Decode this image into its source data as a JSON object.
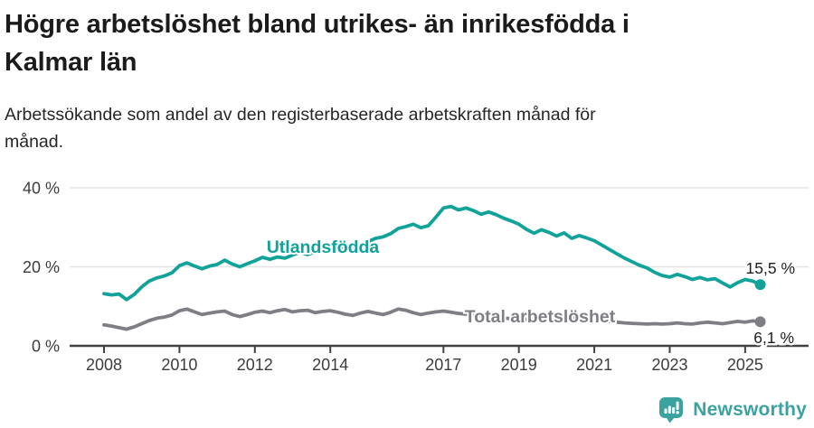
{
  "header": {
    "title_line1": "Högre arbetslöshet bland utrikes- än inrikesfödda i",
    "title_line2": "Kalmar län",
    "subtitle_line1": "Arbetssökande som andel av den registerbaserade arbetskraften månad för",
    "subtitle_line2": "månad."
  },
  "footer": {
    "brand": "Newsworthy",
    "logo_icon": "bar-chart-speech-bubble-icon"
  },
  "colors": {
    "teal": "#11a29a",
    "gray": "#7e7e84",
    "grid": "#e4e4e4",
    "axis": "#414141",
    "tick_text": "#3c3c3c",
    "value_text": "#1f1f1f",
    "logo_teal": "#3ba39f"
  },
  "chart_data": {
    "type": "line",
    "title": "Högre arbetslöshet bland utrikes- än inrikesfödda i Kalmar län",
    "subtitle": "Arbetssökande som andel av den registerbaserade arbetskraften månad för månad.",
    "xlabel": "",
    "ylabel": "",
    "ylim": [
      0,
      40
    ],
    "grid": "horizontal",
    "legend_position": "inline-labels",
    "x_start": 2008.0,
    "x_step": 0.2,
    "x_end": 2025.4,
    "y_axis": {
      "ticks": [
        0,
        20,
        40
      ],
      "tick_labels": [
        "0 %",
        "20 %",
        "40 %"
      ]
    },
    "x_axis": {
      "tick_years": [
        2008,
        2010,
        2012,
        2014,
        2017,
        2019,
        2021,
        2023,
        2025
      ],
      "tick_labels": [
        "2008",
        "2010",
        "2012",
        "2014",
        "2017",
        "2019",
        "2021",
        "2023",
        "2025"
      ]
    },
    "series": [
      {
        "name": "Utlandsfödda",
        "color_key": "teal",
        "end_label": "15,5 %",
        "end_value": 15.5,
        "values": [
          13.2,
          12.9,
          13.1,
          11.7,
          13.0,
          14.9,
          16.4,
          17.2,
          17.7,
          18.5,
          20.3,
          21.0,
          20.2,
          19.5,
          20.2,
          20.6,
          21.7,
          20.7,
          20.0,
          20.8,
          21.5,
          22.4,
          21.9,
          22.5,
          22.2,
          23.0,
          23.7,
          23.1,
          23.8,
          24.3,
          24.0,
          24.7,
          25.2,
          24.9,
          25.6,
          26.4,
          27.2,
          27.6,
          28.4,
          29.7,
          30.2,
          30.8,
          29.9,
          30.4,
          32.6,
          34.9,
          35.3,
          34.4,
          34.9,
          34.2,
          33.3,
          33.9,
          33.2,
          32.3,
          31.6,
          30.8,
          29.5,
          28.5,
          29.4,
          28.7,
          27.8,
          28.6,
          27.2,
          27.9,
          27.3,
          26.6,
          25.5,
          24.4,
          23.3,
          22.2,
          21.3,
          20.4,
          19.7,
          18.6,
          17.8,
          17.4,
          18.1,
          17.5,
          16.8,
          17.3,
          16.7,
          17.0,
          15.9,
          14.9,
          16.0,
          16.8,
          16.4,
          15.5
        ]
      },
      {
        "name": "Total arbetslöshet",
        "color_key": "gray",
        "end_label": "6,1 %",
        "end_value": 6.1,
        "values": [
          5.3,
          5.0,
          4.6,
          4.2,
          4.8,
          5.6,
          6.4,
          7.0,
          7.3,
          7.8,
          8.9,
          9.3,
          8.6,
          7.9,
          8.3,
          8.6,
          8.8,
          7.9,
          7.4,
          7.9,
          8.5,
          8.8,
          8.4,
          8.9,
          9.2,
          8.6,
          8.9,
          9.0,
          8.4,
          8.7,
          8.9,
          8.5,
          8.0,
          7.7,
          8.3,
          8.7,
          8.3,
          7.9,
          8.5,
          9.3,
          9.0,
          8.4,
          7.9,
          8.3,
          8.6,
          8.8,
          8.5,
          8.2,
          8.0,
          7.8,
          7.6,
          7.4,
          7.2,
          7.0,
          6.9,
          6.8,
          6.7,
          6.6,
          6.7,
          6.8,
          7.0,
          7.4,
          7.2,
          7.0,
          6.8,
          6.6,
          6.4,
          6.2,
          6.0,
          5.8,
          5.7,
          5.6,
          5.5,
          5.6,
          5.5,
          5.6,
          5.8,
          5.6,
          5.5,
          5.8,
          6.0,
          5.8,
          5.6,
          5.9,
          6.2,
          6.0,
          6.3,
          6.1
        ]
      }
    ]
  }
}
